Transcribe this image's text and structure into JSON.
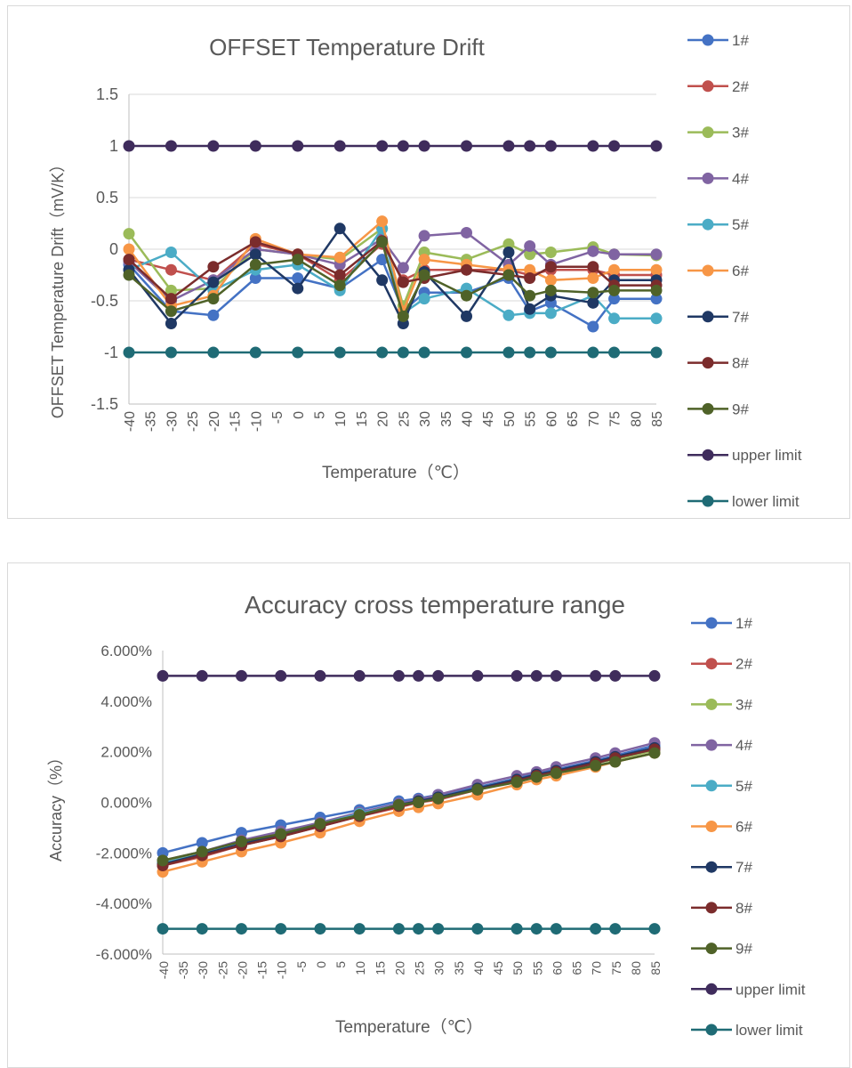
{
  "charts": [
    {
      "title": "OFFSET  Temperature Drift",
      "xlabel": "Temperature（℃）",
      "ylabel": "OFFSET Temperature Drift（mV/K）",
      "ytick_labels": [
        "1.5",
        "1",
        "0.5",
        "0",
        "-0.5",
        "-1",
        "-1.5"
      ],
      "xtick_labels": [
        "-40",
        "-35",
        "-30",
        "-25",
        "-20",
        "-15",
        "-10",
        "-5",
        "0",
        "5",
        "10",
        "15",
        "20",
        "25",
        "30",
        "35",
        "40",
        "45",
        "50",
        "55",
        "60",
        "65",
        "70",
        "75",
        "80",
        "85"
      ],
      "legend": [
        "1#",
        "2#",
        "3#",
        "4#",
        "5#",
        "6#",
        "7#",
        "8#",
        "9#",
        "upper limit",
        "lower limit"
      ]
    },
    {
      "title": "Accuracy cross temperature range",
      "xlabel": "Temperature（℃）",
      "ylabel": "Accuracy（%）",
      "ytick_labels": [
        "6.000%",
        "4.000%",
        "2.000%",
        "0.000%",
        "-2.000%",
        "-4.000%",
        "-6.000%"
      ],
      "xtick_labels": [
        "-40",
        "-35",
        "-30",
        "-25",
        "-20",
        "-15",
        "-10",
        "-5",
        "0",
        "5",
        "10",
        "15",
        "20",
        "25",
        "30",
        "35",
        "40",
        "45",
        "50",
        "55",
        "60",
        "65",
        "70",
        "75",
        "80",
        "85"
      ],
      "legend": [
        "1#",
        "2#",
        "3#",
        "4#",
        "5#",
        "6#",
        "7#",
        "8#",
        "9#",
        "upper limit",
        "lower limit"
      ]
    }
  ],
  "chart_data": [
    {
      "type": "line",
      "title": "OFFSET  Temperature Drift",
      "xlabel": "Temperature（℃）",
      "ylabel": "OFFSET Temperature Drift（mV/K）",
      "ylim": [
        -1.5,
        1.5
      ],
      "x_categories": [
        -40,
        -35,
        -30,
        -25,
        -20,
        -15,
        -10,
        -5,
        0,
        5,
        10,
        15,
        20,
        25,
        30,
        35,
        40,
        45,
        50,
        55,
        60,
        65,
        70,
        75,
        80,
        85
      ],
      "x": [
        -40,
        -30,
        -20,
        -10,
        0,
        10,
        20,
        25,
        30,
        40,
        50,
        55,
        60,
        70,
        75,
        85
      ],
      "grid": true,
      "legend_position": "right",
      "series": [
        {
          "name": "1#",
          "color": "#4472C4",
          "values": [
            -0.15,
            -0.6,
            -0.64,
            -0.28,
            -0.28,
            -0.38,
            -0.1,
            -0.6,
            -0.42,
            -0.42,
            -0.28,
            -0.6,
            -0.52,
            -0.75,
            -0.48,
            -0.48
          ]
        },
        {
          "name": "2#",
          "color": "#C0504D",
          "values": [
            -0.1,
            -0.2,
            -0.3,
            0.05,
            -0.05,
            -0.3,
            0.05,
            -0.3,
            -0.2,
            -0.2,
            -0.2,
            -0.25,
            -0.2,
            -0.2,
            -0.25,
            -0.25
          ]
        },
        {
          "name": "3#",
          "color": "#9BBB59",
          "values": [
            0.15,
            -0.4,
            -0.38,
            0.0,
            -0.05,
            -0.1,
            0.2,
            -0.55,
            -0.03,
            -0.1,
            0.05,
            -0.05,
            -0.03,
            0.02,
            -0.05,
            -0.06
          ]
        },
        {
          "name": "4#",
          "color": "#8064A2",
          "values": [
            -0.12,
            -0.5,
            -0.3,
            0.0,
            -0.05,
            -0.15,
            0.1,
            -0.18,
            0.13,
            0.16,
            -0.15,
            0.03,
            -0.15,
            -0.02,
            -0.05,
            -0.05
          ]
        },
        {
          "name": "5#",
          "color": "#4BACC6",
          "values": [
            -0.2,
            -0.03,
            -0.4,
            -0.2,
            -0.15,
            -0.4,
            0.2,
            -0.62,
            -0.48,
            -0.38,
            -0.64,
            -0.62,
            -0.62,
            -0.45,
            -0.67,
            -0.67
          ]
        },
        {
          "name": "6#",
          "color": "#F79646",
          "values": [
            0.0,
            -0.55,
            -0.45,
            0.1,
            -0.05,
            -0.08,
            0.27,
            -0.6,
            -0.1,
            -0.15,
            -0.2,
            -0.2,
            -0.3,
            -0.28,
            -0.2,
            -0.2
          ]
        },
        {
          "name": "7#",
          "color": "#1F3864",
          "values": [
            -0.2,
            -0.72,
            -0.32,
            -0.05,
            -0.38,
            0.2,
            -0.3,
            -0.72,
            -0.22,
            -0.65,
            -0.03,
            -0.58,
            -0.45,
            -0.52,
            -0.3,
            -0.3
          ]
        },
        {
          "name": "8#",
          "color": "#7B2C2C",
          "values": [
            -0.1,
            -0.48,
            -0.17,
            0.07,
            -0.05,
            -0.25,
            0.08,
            -0.32,
            -0.28,
            -0.2,
            -0.25,
            -0.28,
            -0.17,
            -0.17,
            -0.35,
            -0.35
          ]
        },
        {
          "name": "9#",
          "color": "#4F6228",
          "values": [
            -0.25,
            -0.6,
            -0.48,
            -0.15,
            -0.1,
            -0.35,
            0.07,
            -0.65,
            -0.25,
            -0.45,
            -0.25,
            -0.45,
            -0.4,
            -0.42,
            -0.4,
            -0.4
          ]
        },
        {
          "name": "upper limit",
          "color": "#3F2C5C",
          "values": [
            1,
            1,
            1,
            1,
            1,
            1,
            1,
            1,
            1,
            1,
            1,
            1,
            1,
            1,
            1,
            1
          ]
        },
        {
          "name": "lower limit",
          "color": "#1F6B75",
          "values": [
            -1,
            -1,
            -1,
            -1,
            -1,
            -1,
            -1,
            -1,
            -1,
            -1,
            -1,
            -1,
            -1,
            -1,
            -1,
            -1
          ]
        }
      ]
    },
    {
      "type": "line",
      "title": "Accuracy cross temperature range",
      "xlabel": "Temperature（℃）",
      "ylabel": "Accuracy（%）",
      "ylim": [
        -6,
        6
      ],
      "y_unit": "%",
      "x_categories": [
        -40,
        -35,
        -30,
        -25,
        -20,
        -15,
        -10,
        -5,
        0,
        5,
        10,
        15,
        20,
        25,
        30,
        35,
        40,
        45,
        50,
        55,
        60,
        65,
        70,
        75,
        80,
        85
      ],
      "x": [
        -40,
        -30,
        -20,
        -10,
        0,
        10,
        20,
        25,
        30,
        40,
        50,
        55,
        60,
        70,
        75,
        85
      ],
      "grid": false,
      "legend_position": "right",
      "series": [
        {
          "name": "1#",
          "color": "#4472C4",
          "values": [
            -2.0,
            -1.6,
            -1.2,
            -0.9,
            -0.6,
            -0.3,
            0.05,
            0.15,
            0.3,
            0.6,
            0.95,
            1.15,
            1.3,
            1.65,
            1.85,
            2.25
          ]
        },
        {
          "name": "2#",
          "color": "#C0504D",
          "values": [
            -2.5,
            -2.15,
            -1.7,
            -1.35,
            -0.95,
            -0.55,
            -0.2,
            0.0,
            0.1,
            0.5,
            0.85,
            1.0,
            1.2,
            1.55,
            1.75,
            2.1
          ]
        },
        {
          "name": "3#",
          "color": "#9BBB59",
          "values": [
            -2.35,
            -2.0,
            -1.55,
            -1.2,
            -0.85,
            -0.45,
            -0.1,
            0.05,
            0.15,
            0.55,
            0.85,
            1.05,
            1.2,
            1.55,
            1.7,
            2.05
          ]
        },
        {
          "name": "4#",
          "color": "#8064A2",
          "values": [
            -2.3,
            -1.95,
            -1.5,
            -1.15,
            -0.8,
            -0.4,
            -0.05,
            0.1,
            0.3,
            0.7,
            1.05,
            1.2,
            1.4,
            1.75,
            1.95,
            2.35
          ]
        },
        {
          "name": "5#",
          "color": "#4BACC6",
          "values": [
            -2.4,
            -2.05,
            -1.6,
            -1.25,
            -0.85,
            -0.45,
            -0.1,
            0.05,
            0.2,
            0.55,
            0.9,
            1.05,
            1.2,
            1.55,
            1.75,
            2.1
          ]
        },
        {
          "name": "6#",
          "color": "#F79646",
          "values": [
            -2.75,
            -2.35,
            -1.95,
            -1.6,
            -1.2,
            -0.75,
            -0.35,
            -0.2,
            -0.05,
            0.3,
            0.7,
            0.9,
            1.05,
            1.4,
            1.6,
            1.95
          ]
        },
        {
          "name": "7#",
          "color": "#1F3864",
          "values": [
            -2.45,
            -2.05,
            -1.65,
            -1.3,
            -0.9,
            -0.5,
            -0.1,
            0.05,
            0.2,
            0.55,
            0.9,
            1.1,
            1.25,
            1.6,
            1.8,
            2.15
          ]
        },
        {
          "name": "8#",
          "color": "#7B2C2C",
          "values": [
            -2.5,
            -2.1,
            -1.7,
            -1.35,
            -0.95,
            -0.55,
            -0.15,
            0.0,
            0.15,
            0.5,
            0.85,
            1.05,
            1.2,
            1.55,
            1.75,
            2.1
          ]
        },
        {
          "name": "9#",
          "color": "#4F6228",
          "values": [
            -2.3,
            -1.95,
            -1.55,
            -1.25,
            -0.85,
            -0.5,
            -0.1,
            0.0,
            0.15,
            0.5,
            0.8,
            1.0,
            1.15,
            1.45,
            1.6,
            1.95
          ]
        },
        {
          "name": "upper limit",
          "color": "#3F2C5C",
          "values": [
            5,
            5,
            5,
            5,
            5,
            5,
            5,
            5,
            5,
            5,
            5,
            5,
            5,
            5,
            5,
            5
          ]
        },
        {
          "name": "lower limit",
          "color": "#1F6B75",
          "values": [
            -5,
            -5,
            -5,
            -5,
            -5,
            -5,
            -5,
            -5,
            -5,
            -5,
            -5,
            -5,
            -5,
            -5,
            -5,
            -5
          ]
        }
      ]
    }
  ]
}
